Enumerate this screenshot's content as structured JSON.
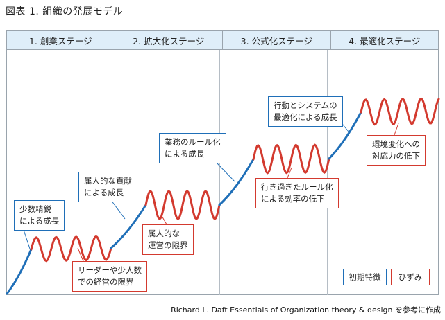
{
  "figure_title": "図表 1. 組織の発展モデル",
  "stages": [
    {
      "label": "1. 創業ステージ"
    },
    {
      "label": "2. 拡大化ステージ"
    },
    {
      "label": "3. 公式化ステージ"
    },
    {
      "label": "4. 最適化ステージ"
    }
  ],
  "callouts": {
    "stage1_feature": [
      "少数精鋭",
      "による成長"
    ],
    "stage1_distortion": [
      "リーダーや少人数",
      "での経営の限界"
    ],
    "stage2_feature": [
      "属人的な貢献",
      "による成長"
    ],
    "stage2_distortion": [
      "属人的な",
      "運営の限界"
    ],
    "stage3_feature": [
      "業務のルール化",
      "による成長"
    ],
    "stage3_distortion": [
      "行き過ぎたルール化",
      "による効率の低下"
    ],
    "stage4_feature": [
      "行動とシステムの",
      "最適化による成長"
    ],
    "stage4_distortion": [
      "環境変化への",
      "対応力の低下"
    ]
  },
  "legend": {
    "feature_label": "初期特徴",
    "distortion_label": "ひずみ"
  },
  "colors": {
    "feature": "#1f6fb8",
    "distortion": "#d33a2f",
    "header_bg": "#dfeef9"
  },
  "caption": "Richard L. Daft Essentials of  Organization theory & design を参考に作成"
}
